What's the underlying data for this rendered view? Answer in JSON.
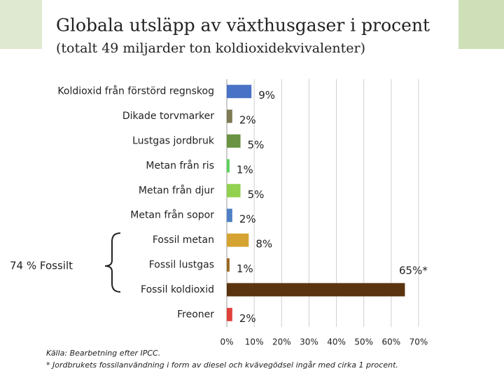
{
  "chart_data": {
    "type": "barh",
    "title": "Globala utsläpp av växthusgaser i procent",
    "subtitle": "(totalt 49 miljarder ton koldioxidekvivalenter)",
    "categories": [
      "Koldioxid från förstörd regnskog",
      "Dikade torvmarker",
      "Lustgas jordbruk",
      "Metan från ris",
      "Metan från djur",
      "Metan från sopor",
      "Fossil metan",
      "Fossil lustgas",
      "Fossil koldioxid",
      "Freoner"
    ],
    "values": [
      9,
      2,
      5,
      1,
      5,
      2,
      8,
      1,
      65,
      2
    ],
    "value_labels": [
      "9%",
      "2%",
      "5%",
      "1%",
      "5%",
      "2%",
      "8%",
      "1%",
      "65%*",
      "2%"
    ],
    "colors": [
      "#4a72c6",
      "#7d7a55",
      "#6a9444",
      "#5cd15a",
      "#92d050",
      "#4f7fc4",
      "#d4a332",
      "#9a6a20",
      "#5a3410",
      "#e0403a"
    ],
    "xlim": [
      0,
      70
    ],
    "xticks": [
      {
        "value": 0,
        "label": "0%"
      },
      {
        "value": 10,
        "label": "10%"
      },
      {
        "value": 20,
        "label": "20%"
      },
      {
        "value": 30,
        "label": "30%"
      },
      {
        "value": 40,
        "label": "40%"
      },
      {
        "value": 50,
        "label": "50%"
      },
      {
        "value": 60,
        "label": "60%"
      },
      {
        "value": 70,
        "label": "70%"
      }
    ],
    "grid": true,
    "annotation": "74 % Fossilt",
    "source": "Källa: Bearbetning efter IPCC.",
    "footnote": "* Jordbrukets fossilanvändning i form av diesel och kvävegödsel ingår med cirka 1 procent."
  }
}
